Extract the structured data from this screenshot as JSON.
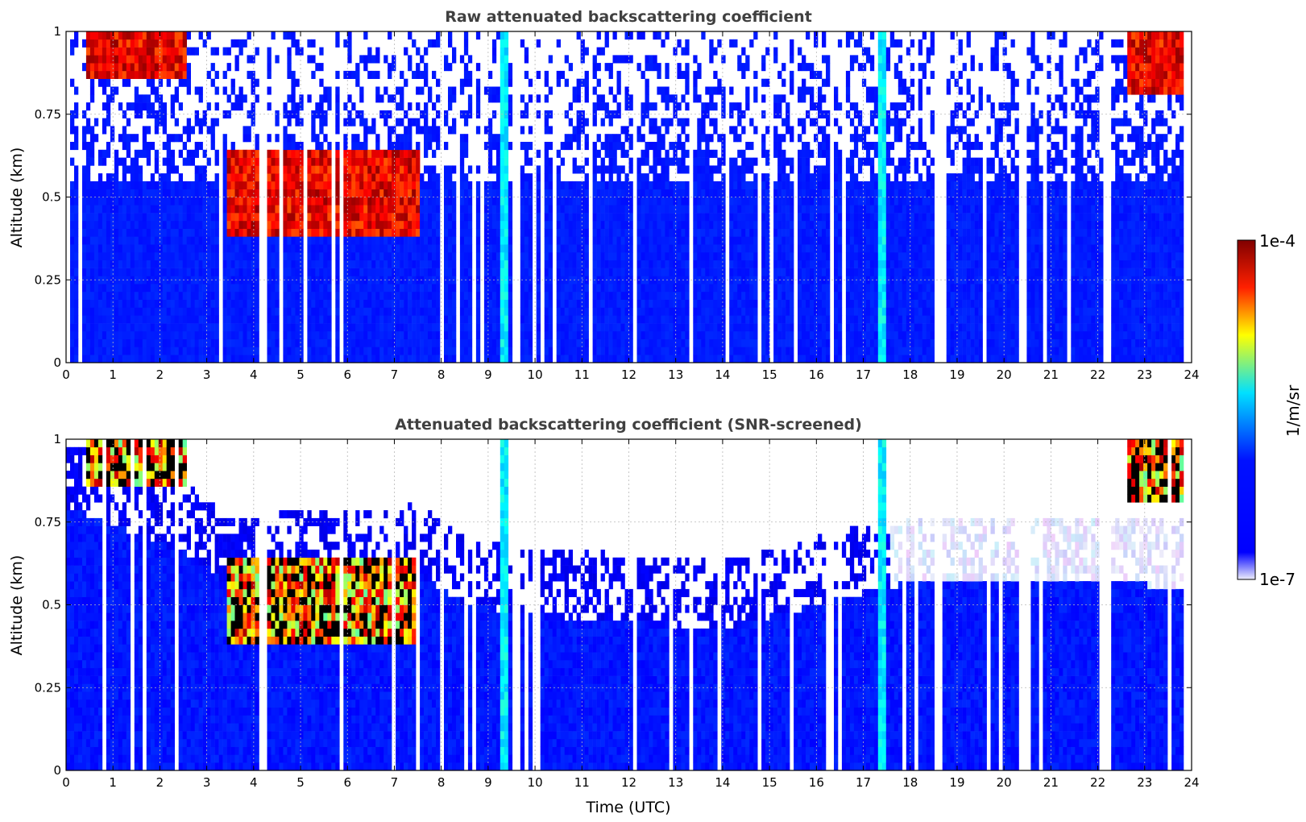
{
  "chart_data": [
    {
      "type": "heatmap",
      "title": "Raw attenuated backscattering coefficient",
      "xlabel": "",
      "ylabel": "Altitude (km)",
      "xlim": [
        0,
        24
      ],
      "ylim": [
        0,
        1
      ],
      "x_ticks": [
        "0",
        "1",
        "2",
        "3",
        "4",
        "5",
        "6",
        "7",
        "8",
        "9",
        "10",
        "11",
        "12",
        "13",
        "14",
        "15",
        "16",
        "17",
        "18",
        "19",
        "20",
        "21",
        "22",
        "23",
        "24"
      ],
      "y_ticks": [
        "0",
        "0.25",
        "0.5",
        "0.75",
        "1"
      ],
      "grid": true,
      "features": [
        {
          "t_start": 3.4,
          "t_end": 7.5,
          "base_alt": 0.38,
          "top_alt": 0.65,
          "level": "high"
        },
        {
          "t_start": 0.4,
          "t_end": 2.6,
          "base_alt": 0.85,
          "top_alt": 1.0,
          "level": "high"
        },
        {
          "t_start": 22.6,
          "t_end": 23.8,
          "base_alt": 0.8,
          "top_alt": 1.0,
          "level": "high"
        },
        {
          "t_start": 17.35,
          "t_end": 17.5,
          "base_alt": 0.0,
          "top_alt": 1.0,
          "level": "medium"
        },
        {
          "t_start": 9.3,
          "t_end": 9.45,
          "base_alt": 0.0,
          "top_alt": 1.0,
          "level": "medium"
        }
      ],
      "noise_floor_alt": 0.55
    },
    {
      "type": "heatmap",
      "title": "Attenuated backscattering coefficient (SNR-screened)",
      "xlabel": "Time (UTC)",
      "ylabel": "Altitude (km)",
      "xlim": [
        0,
        24
      ],
      "ylim": [
        0,
        1
      ],
      "x_ticks": [
        "0",
        "1",
        "2",
        "3",
        "4",
        "5",
        "6",
        "7",
        "8",
        "9",
        "10",
        "11",
        "12",
        "13",
        "14",
        "15",
        "16",
        "17",
        "18",
        "19",
        "20",
        "21",
        "22",
        "23",
        "24"
      ],
      "y_ticks": [
        "0",
        "0.25",
        "0.5",
        "0.75",
        "1"
      ],
      "grid": true,
      "boundary_layer_top_km": [
        [
          0,
          0.85
        ],
        [
          2.7,
          0.7
        ],
        [
          3.4,
          0.62
        ],
        [
          7.5,
          0.65
        ],
        [
          8.5,
          0.55
        ],
        [
          10,
          0.52
        ],
        [
          14,
          0.48
        ],
        [
          16,
          0.55
        ],
        [
          18,
          0.62
        ],
        [
          22,
          0.62
        ],
        [
          24,
          0.6
        ]
      ],
      "colorbar": {
        "label": "1/m/sr",
        "min_label": "1e-7",
        "max_label": "1e-4",
        "colormap": "jet",
        "colors": [
          "#eeeefb",
          "#0000ff",
          "#00ffff",
          "#ffff00",
          "#ff0000",
          "#800000"
        ]
      }
    }
  ]
}
